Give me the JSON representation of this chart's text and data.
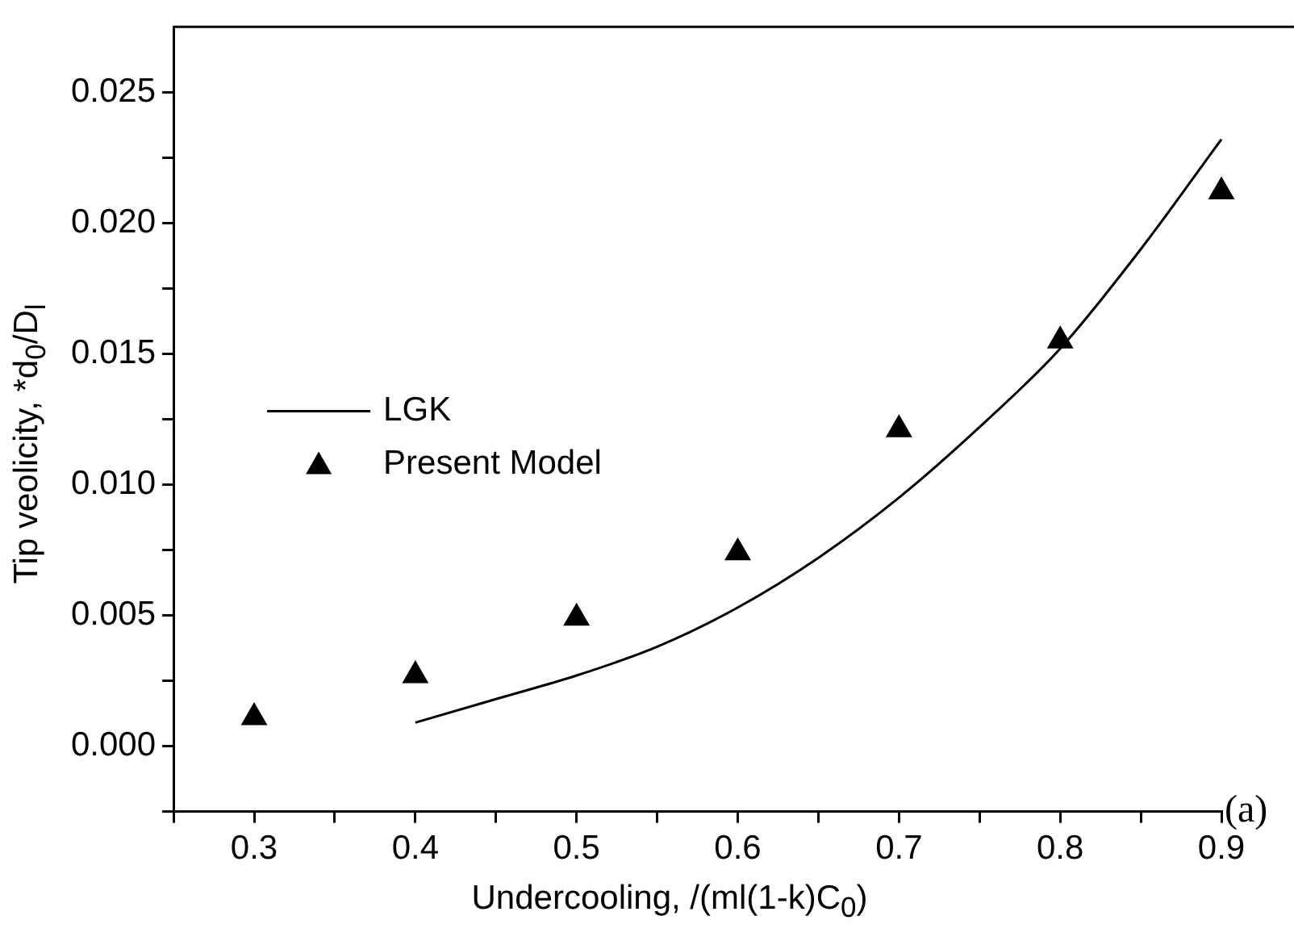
{
  "chart_data": {
    "type": "scatter",
    "xlabel": "Undercooling, /(ml(1-k)C$_{0}$)",
    "ylabel": "Tip veolicity, *d$_{0}$/D$_{l}$",
    "annotations": [
      "(a)"
    ],
    "series": [
      {
        "name": "LGK",
        "type": "line",
        "color": "#000000",
        "marker": "none",
        "line_style": "solid",
        "x": [
          0.4,
          0.45,
          0.5,
          0.55,
          0.6,
          0.65,
          0.7,
          0.75,
          0.8,
          0.85,
          0.9
        ],
        "values": [
          0.0009,
          0.0018,
          0.0027,
          0.0038,
          0.0053,
          0.0072,
          0.0095,
          0.0122,
          0.0152,
          0.019,
          0.0232
        ]
      },
      {
        "name": "Present Model",
        "color": "#000000",
        "marker": "triangle",
        "x": [
          0.3,
          0.4,
          0.5,
          0.6,
          0.7,
          0.8,
          0.9
        ],
        "values": [
          0.0011,
          0.0027,
          0.0049,
          0.0074,
          0.0121,
          0.0155,
          0.0212
        ]
      }
    ],
    "xlim": [
      0.25,
      0.9
    ],
    "xticks": [
      {
        "value": 0.25,
        "label": null
      },
      0.3,
      {
        "value": 0.35,
        "label": null
      },
      0.4,
      {
        "value": 0.45,
        "label": null
      },
      0.5,
      {
        "value": 0.55,
        "label": null
      },
      0.6,
      {
        "value": 0.65,
        "label": null
      },
      0.7,
      {
        "value": 0.75,
        "label": null
      },
      0.8,
      {
        "value": 0.85,
        "label": null
      },
      0.9
    ],
    "ylim": [
      -0.0025,
      0.0275
    ],
    "yticks": [
      {
        "value": -0.0025,
        "label": null
      },
      {
        "value": 0,
        "label": "0.000"
      },
      {
        "value": 0.0025,
        "label": null
      },
      {
        "value": 0.005,
        "label": "0.005"
      },
      {
        "value": 0.0075,
        "label": null
      },
      {
        "value": 0.01,
        "label": "0.010"
      },
      {
        "value": 0.0125,
        "label": null
      },
      {
        "value": 0.015,
        "label": "0.015"
      },
      {
        "value": 0.0175,
        "label": null
      },
      {
        "value": 0.02,
        "label": "0.020"
      },
      {
        "value": 0.0225,
        "label": null
      },
      {
        "value": 0.025,
        "label": "0.025"
      }
    ],
    "grid": false,
    "legend": "left"
  }
}
